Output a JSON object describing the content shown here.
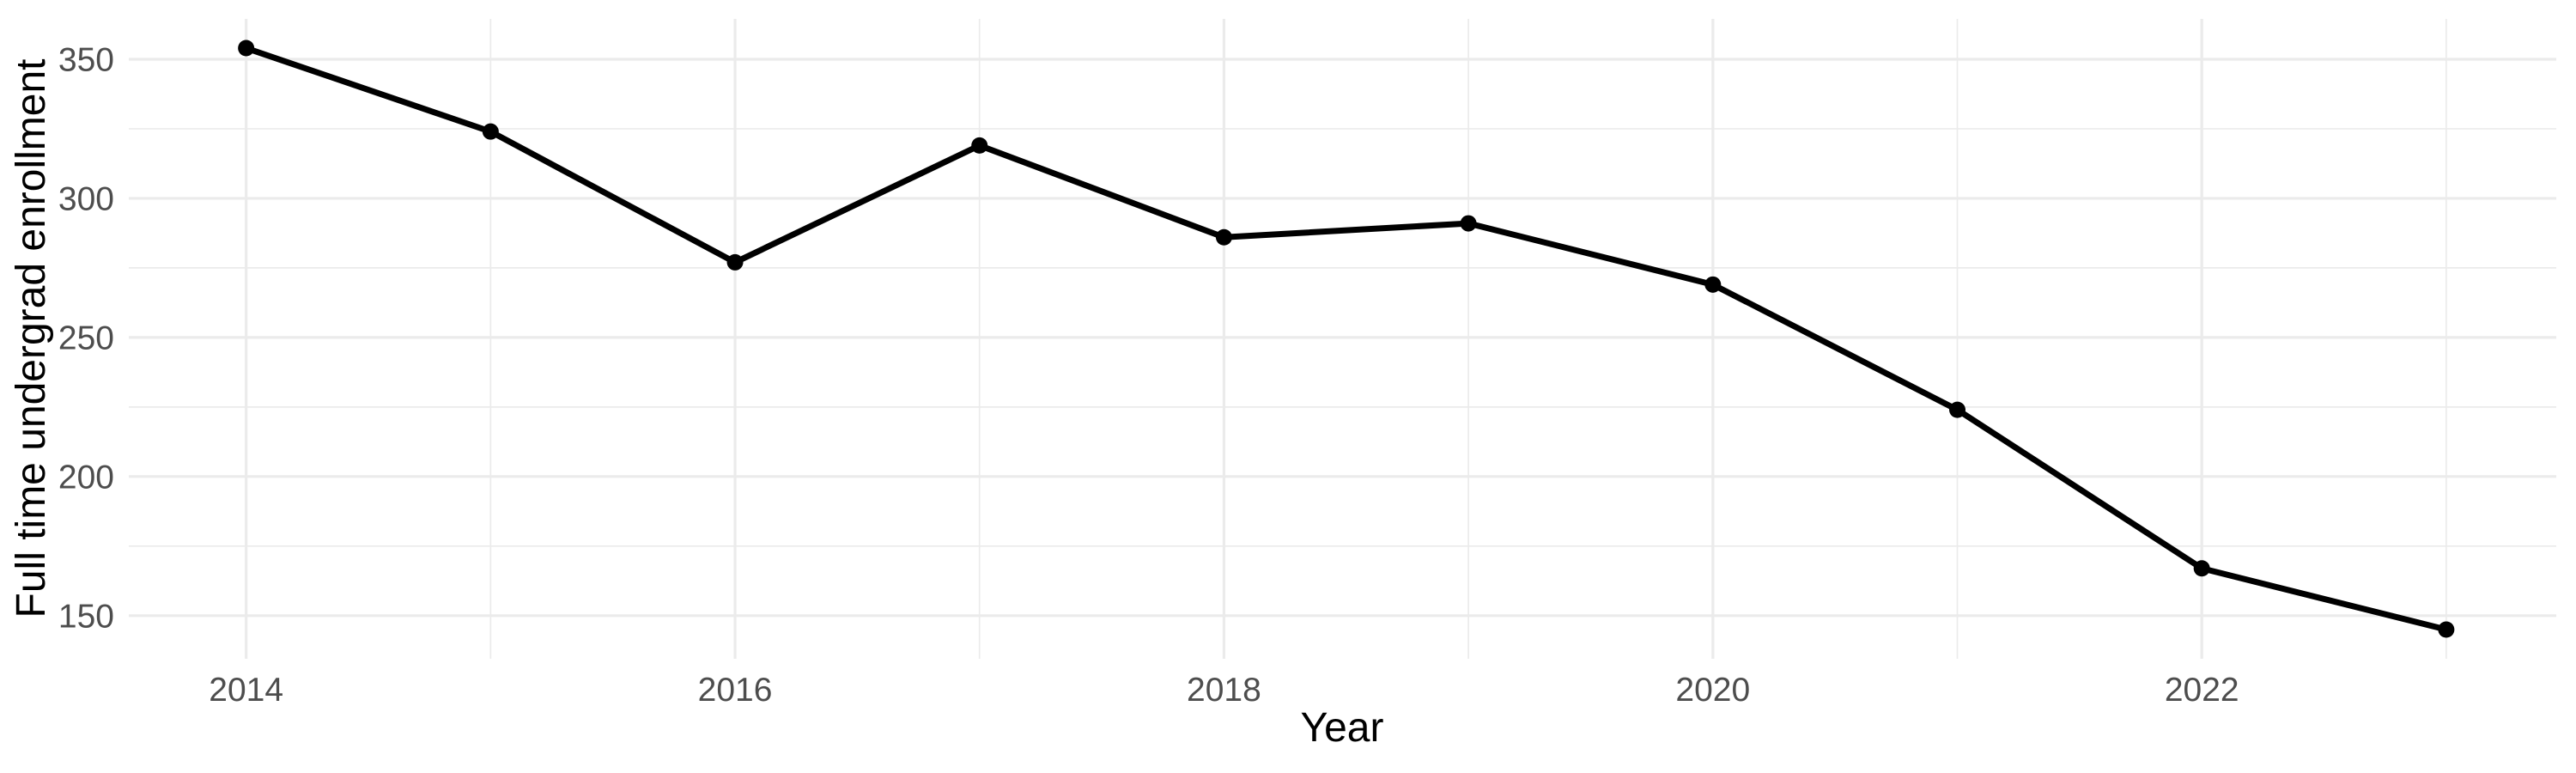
{
  "chart_data": {
    "type": "line",
    "title": "",
    "xlabel": "Year",
    "ylabel": "Full time undergrad enrollment",
    "x": [
      2014,
      2015,
      2016,
      2017,
      2018,
      2019,
      2020,
      2021,
      2022,
      2023
    ],
    "series": [
      {
        "name": "Full time undergrad enrollment",
        "values": [
          354,
          324,
          277,
          319,
          286,
          291,
          269,
          224,
          167,
          145
        ]
      }
    ],
    "xlim": [
      2013.52,
      2023.45
    ],
    "ylim": [
      134.5,
      364.5
    ],
    "x_major_ticks": [
      2014,
      2016,
      2018,
      2020,
      2022
    ],
    "x_minor_gridlines": [
      2015,
      2017,
      2019,
      2021,
      2023
    ],
    "y_major_ticks": [
      150,
      200,
      250,
      300,
      350
    ],
    "y_minor_gridlines": [
      175,
      225,
      275,
      325
    ],
    "grid": true,
    "legend": false,
    "style": {
      "background_color": "#FFFFFF",
      "line_color": "#000000",
      "point_color": "#000000",
      "gridline_color": "#EBEBEB",
      "tick_label_color": "#4D4D4D",
      "axis_title_color": "#000000"
    }
  }
}
